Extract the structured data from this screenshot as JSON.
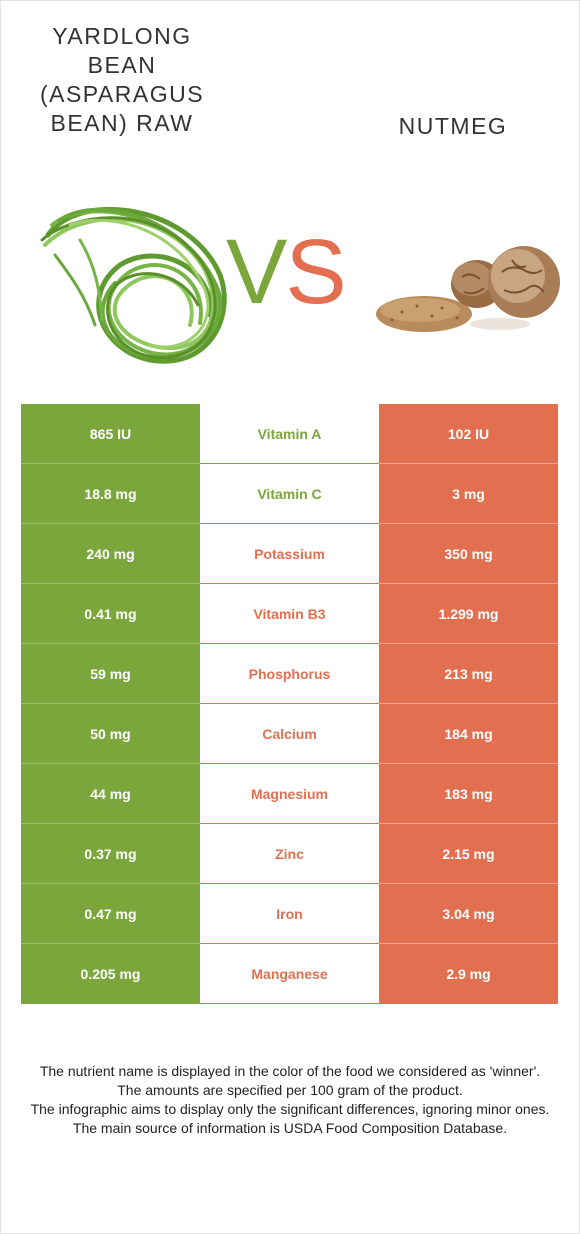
{
  "header": {
    "left_title": "YARDLONG BEAN (ASPARAGUS BEAN) RAW",
    "right_title": "NUTMEG",
    "vs_v": "V",
    "vs_s": "S"
  },
  "colors": {
    "left_food": "#7aa63b",
    "right_food": "#e27050"
  },
  "rows": [
    {
      "left": "865 IU",
      "nutrient": "Vitamin A",
      "right": "102 IU",
      "winner": "left"
    },
    {
      "left": "18.8 mg",
      "nutrient": "Vitamin C",
      "right": "3 mg",
      "winner": "left"
    },
    {
      "left": "240 mg",
      "nutrient": "Potassium",
      "right": "350 mg",
      "winner": "right"
    },
    {
      "left": "0.41 mg",
      "nutrient": "Vitamin B3",
      "right": "1.299 mg",
      "winner": "right"
    },
    {
      "left": "59 mg",
      "nutrient": "Phosphorus",
      "right": "213 mg",
      "winner": "right"
    },
    {
      "left": "50 mg",
      "nutrient": "Calcium",
      "right": "184 mg",
      "winner": "right"
    },
    {
      "left": "44 mg",
      "nutrient": "Magnesium",
      "right": "183 mg",
      "winner": "right"
    },
    {
      "left": "0.37 mg",
      "nutrient": "Zinc",
      "right": "2.15 mg",
      "winner": "right"
    },
    {
      "left": "0.47 mg",
      "nutrient": "Iron",
      "right": "3.04 mg",
      "winner": "right"
    },
    {
      "left": "0.205 mg",
      "nutrient": "Manganese",
      "right": "2.9 mg",
      "winner": "right"
    }
  ],
  "footer": {
    "line1": "The nutrient name is displayed in the color of the food we considered as 'winner'.",
    "line2": "The amounts are specified per 100 gram of the product.",
    "line3": "The infographic aims to display only the significant differences, ignoring minor ones.",
    "line4": "The main source of information is USDA Food Composition Database."
  }
}
